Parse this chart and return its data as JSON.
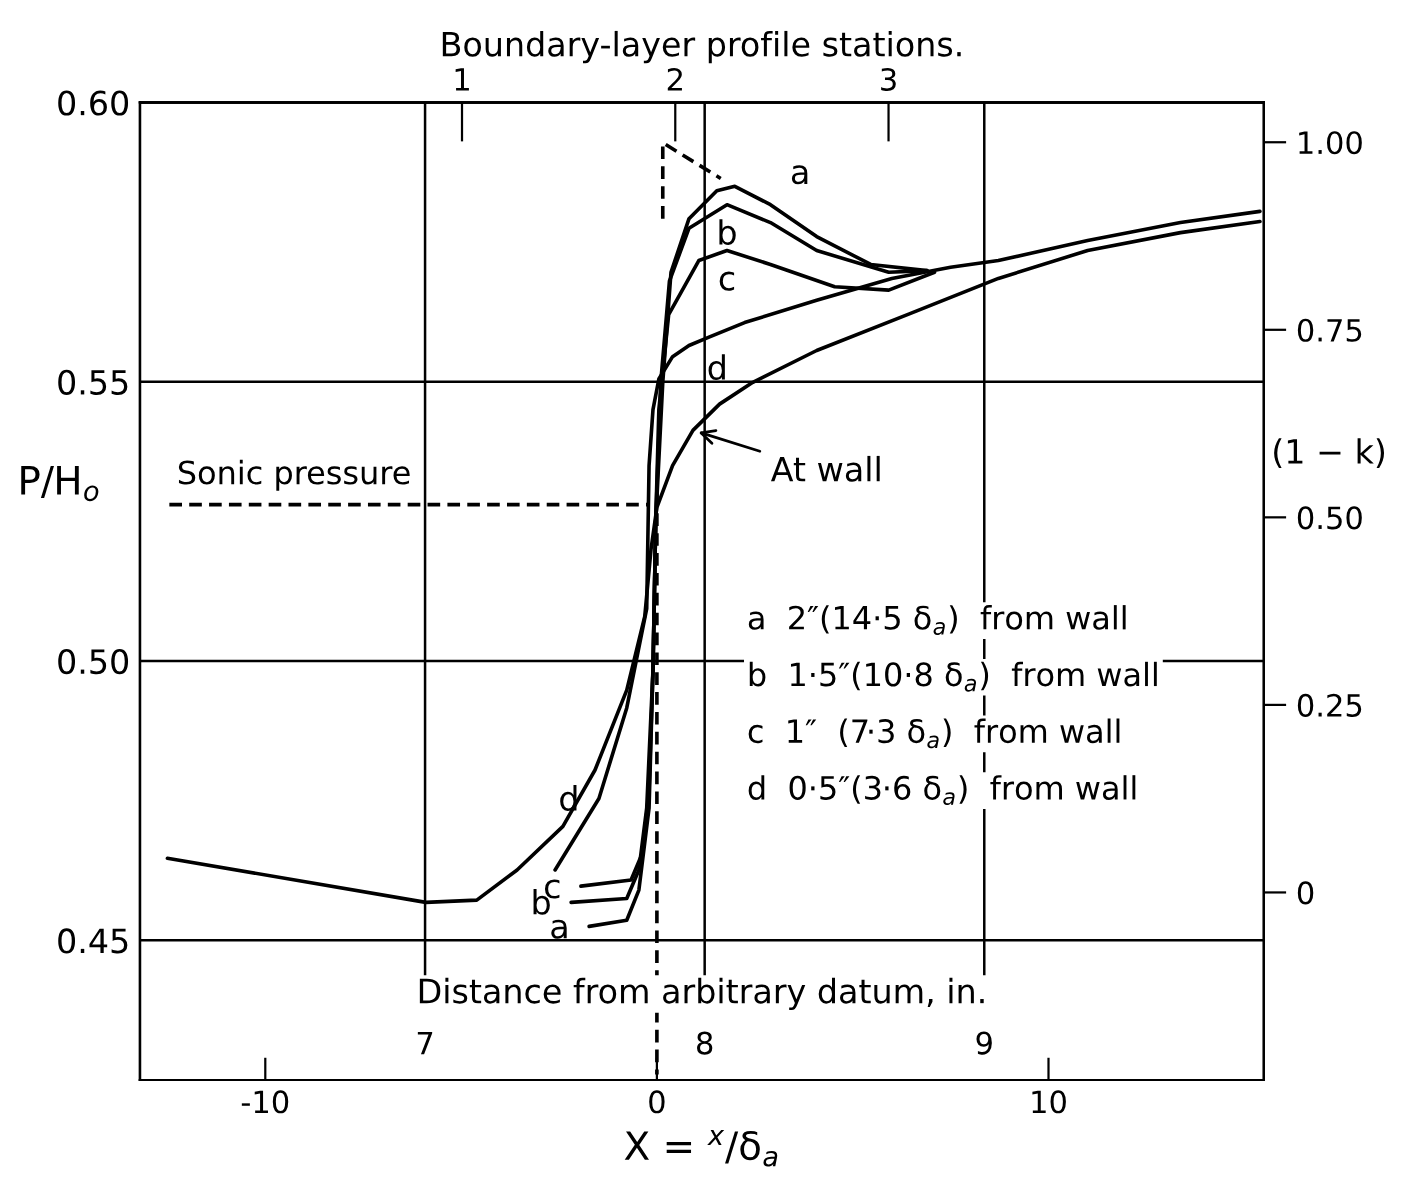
{
  "chart_data": {
    "type": "line",
    "x2label": "Boundary-layer profile stations.",
    "xlabel": "X = $^{x}$/δ$_{a}$",
    "ylabel": "P/H$_{o}$",
    "y2label": "(1 − k)",
    "xlim": [
      -13.2,
      15.5
    ],
    "xticks": [
      -10,
      0,
      10
    ],
    "ylim": [
      0.425,
      0.6
    ],
    "yticks": [
      0.45,
      {
        "value": 0.5,
        "label": "0.50"
      },
      0.55,
      {
        "value": 0.6,
        "label": "0.60"
      }
    ],
    "y2lim": [
      -0.25,
      1.053
    ],
    "y2ticks": [
      0,
      0.25,
      {
        "value": 0.5,
        "label": "0.50"
      },
      0.75,
      {
        "value": 1.0,
        "label": "1.00"
      }
    ],
    "x2lim": [
      -0.51,
      4.76
    ],
    "x2ticks": [
      1,
      2,
      3
    ],
    "grid": "y",
    "ref_lines": [
      {
        "axis": "x",
        "value": -5.92
      },
      {
        "axis": "x",
        "value": 1.22
      },
      {
        "axis": "x",
        "value": 8.36
      }
    ],
    "series": [
      {
        "name": "At wall",
        "color": "#000000",
        "x": [
          -12.5,
          -5.9,
          -4.6,
          -3.57,
          -2.4,
          -1.58,
          -0.77,
          -0.31,
          -0.15,
          0.0,
          0.4,
          0.92,
          1.6,
          2.45,
          4.08,
          6.43,
          8.72,
          11.0,
          13.37,
          15.4
        ],
        "values": [
          0.4647,
          0.4568,
          0.4572,
          0.4626,
          0.4704,
          0.4805,
          0.4948,
          0.508,
          0.52,
          0.5275,
          0.535,
          0.5413,
          0.546,
          0.5499,
          0.5556,
          0.5621,
          0.5685,
          0.5735,
          0.5767,
          0.5787
        ]
      },
      {
        "color": "#000000",
        "x": [
          -1.73,
          -0.77,
          -0.46,
          -0.2,
          -0.1,
          -0.03,
          0.15,
          0.36,
          0.82,
          1.53,
          1.99,
          2.9,
          4.08,
          5.46,
          6.9
        ],
        "values": [
          0.4525,
          0.4536,
          0.459,
          0.4737,
          0.4984,
          0.525,
          0.5499,
          0.5696,
          0.5792,
          0.5842,
          0.585,
          0.5817,
          0.576,
          0.571,
          0.5699
        ]
      },
      {
        "color": "#000000",
        "x": [
          -2.19,
          -0.77,
          -0.46,
          -0.26,
          -0.1,
          -0.03,
          0.1,
          0.32,
          0.82,
          1.79,
          2.9,
          4.08,
          5.92,
          6.9
        ],
        "values": [
          0.4568,
          0.4575,
          0.4626,
          0.4737,
          0.4984,
          0.525,
          0.55,
          0.568,
          0.5775,
          0.5817,
          0.5785,
          0.5735,
          0.5696,
          0.5699
        ]
      },
      {
        "color": "#000000",
        "x": [
          -1.94,
          -0.66,
          -0.36,
          -0.2,
          -0.1,
          -0.03,
          0.05,
          0.3,
          1.07,
          1.79,
          2.9,
          4.54,
          5.92,
          7.09
        ],
        "values": [
          0.4597,
          0.4608,
          0.4658,
          0.4769,
          0.4984,
          0.525,
          0.545,
          0.562,
          0.5717,
          0.5735,
          0.571,
          0.567,
          0.5664,
          0.5696
        ]
      },
      {
        "color": "#000000",
        "x": [
          -2.6,
          -1.48,
          -0.77,
          -0.26,
          -0.2,
          -0.1,
          0.05,
          0.4,
          0.82,
          1.33,
          2.24,
          4.08,
          6.0,
          7.5,
          8.72,
          11.0,
          13.37,
          15.4
        ],
        "values": [
          0.4626,
          0.4754,
          0.4916,
          0.5094,
          0.535,
          0.545,
          0.5505,
          0.5545,
          0.5565,
          0.558,
          0.5606,
          0.5646,
          0.5685,
          0.5705,
          0.5717,
          0.5753,
          0.5785,
          0.5805
        ]
      },
      {
        "name": "Sonic pressure",
        "color": "#000000",
        "line_style": "dashed",
        "x": [
          -12.45,
          -0.2
        ],
        "values": [
          0.528,
          0.528
        ]
      },
      {
        "color": "#000000",
        "line_style": "dashed",
        "x": [
          0.0,
          0.0
        ],
        "values": [
          0.53,
          0.426
        ]
      },
      {
        "color": "#000000",
        "line_style": "dashed",
        "x": [
          0.15,
          0.15,
          1.63
        ],
        "values": [
          0.5792,
          0.5928,
          0.5864
        ]
      }
    ],
    "annotations": [
      {
        "text": "a",
        "x": 2.9,
        "y": 0.5817
      },
      {
        "text": "b",
        "x": 1.79,
        "y": 0.5817
      },
      {
        "text": "c",
        "x": 1.79,
        "y": 0.5735
      },
      {
        "text": "d",
        "x": 1.33,
        "y": 0.558
      },
      {
        "text": "d",
        "x": -1.48,
        "y": 0.4754
      },
      {
        "text": "c",
        "x": -1.94,
        "y": 0.4597
      },
      {
        "text": "b",
        "x": -2.19,
        "y": 0.4568
      },
      {
        "text": "a",
        "x": -1.73,
        "y": 0.4525
      },
      "Distance from arbitrary datum, in.",
      "7",
      "8",
      "9",
      "a  2″(14·5 δ$_{a}$)  from wall",
      "b  1·5″(10·8 δ$_{a}$)  from wall",
      "c  1″  (7·3 δ$_{a}$)  from wall",
      "d  0·5″(3·6 δ$_{a}$)  from wall"
    ]
  }
}
